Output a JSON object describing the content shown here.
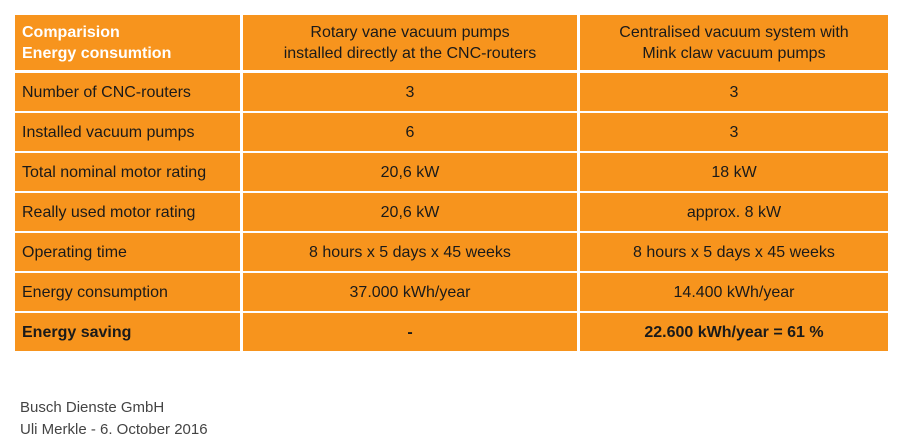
{
  "table": {
    "header": [
      [
        "Comparision",
        "Energy consumtion"
      ],
      [
        "Rotary vane vacuum pumps",
        "installed directly at the CNC-routers"
      ],
      [
        "Centralised vacuum system with",
        "Mink claw vacuum pumps"
      ]
    ],
    "rows": [
      [
        "Number of CNC-routers",
        "3",
        "3"
      ],
      [
        "Installed vacuum pumps",
        "6",
        "3"
      ],
      [
        "Total nominal motor rating",
        "20,6 kW",
        "18 kW"
      ],
      [
        "Really used motor rating",
        "20,6 kW",
        "approx. 8 kW"
      ],
      [
        "Operating time",
        "8 hours x 5 days x 45 weeks",
        "8 hours x 5 days x 45 weeks"
      ],
      [
        "Energy consumption",
        "37.000 kWh/year",
        "14.400 kWh/year"
      ],
      [
        "Energy saving",
        "-",
        "22.600 kWh/year = 61 %"
      ]
    ]
  },
  "footer": [
    "Busch Dienste GmbH",
    "Uli Merkle - 6. October 2016"
  ]
}
